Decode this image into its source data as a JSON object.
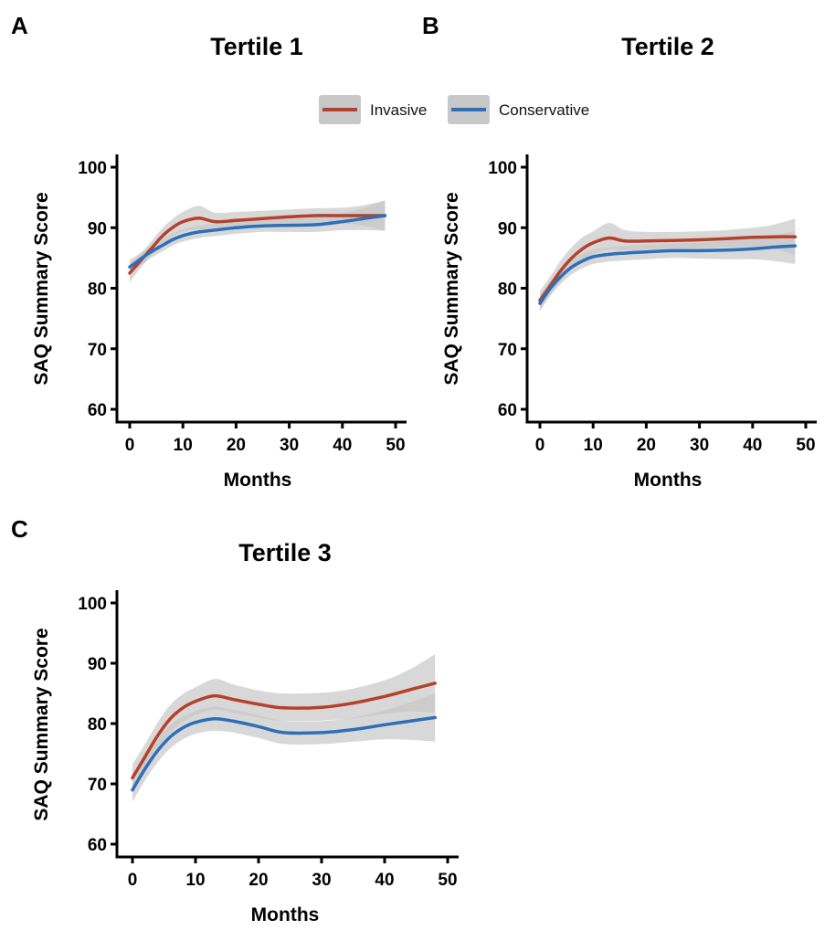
{
  "legend": {
    "items": [
      {
        "label": "Invasive",
        "color": "#b5412d"
      },
      {
        "label": "Conservative",
        "color": "#2f6fb7"
      }
    ],
    "band_color": "#c8c8c8"
  },
  "chart_data": [
    {
      "panel": "A",
      "type": "line",
      "title": "Tertile 1",
      "xlabel": "Months",
      "ylabel": "SAQ Summary Score",
      "xlim": [
        0,
        50
      ],
      "ylim": [
        60,
        100
      ],
      "xticks": [
        "0",
        "10",
        "20",
        "30",
        "40",
        "50"
      ],
      "yticks": [
        "60",
        "70",
        "80",
        "90",
        "100"
      ],
      "x": [
        0,
        2,
        4,
        6,
        8,
        10,
        13,
        16,
        20,
        25,
        30,
        35,
        40,
        44,
        48
      ],
      "series": [
        {
          "name": "Invasive",
          "color": "#b5412d",
          "values": [
            82.5,
            84.5,
            86.5,
            88.5,
            90.0,
            91.0,
            91.6,
            91.0,
            91.2,
            91.5,
            91.8,
            92.0,
            92.0,
            92.0,
            92.0
          ],
          "lower": [
            81.0,
            83.3,
            85.3,
            87.2,
            88.6,
            89.4,
            89.8,
            89.5,
            89.8,
            90.2,
            90.6,
            90.8,
            90.7,
            90.3,
            89.5
          ],
          "upper": [
            84.0,
            85.7,
            87.7,
            89.8,
            91.4,
            92.6,
            93.6,
            92.5,
            92.6,
            92.8,
            93.0,
            93.2,
            93.3,
            93.7,
            94.5
          ]
        },
        {
          "name": "Conservative",
          "color": "#2f6fb7",
          "values": [
            83.5,
            84.8,
            86.0,
            87.0,
            88.0,
            88.7,
            89.3,
            89.6,
            90.0,
            90.3,
            90.4,
            90.5,
            91.0,
            91.5,
            92.0
          ],
          "lower": [
            82.3,
            83.8,
            85.0,
            86.0,
            87.0,
            87.7,
            88.3,
            88.6,
            89.0,
            89.3,
            89.3,
            89.3,
            89.6,
            89.6,
            89.5
          ],
          "upper": [
            84.7,
            85.8,
            87.0,
            88.0,
            89.0,
            89.7,
            90.3,
            90.6,
            91.0,
            91.3,
            91.5,
            91.7,
            92.4,
            93.2,
            94.5
          ]
        }
      ]
    },
    {
      "panel": "B",
      "type": "line",
      "title": "Tertile 2",
      "xlabel": "Months",
      "ylabel": "SAQ Summary Score",
      "xlim": [
        0,
        50
      ],
      "ylim": [
        60,
        100
      ],
      "xticks": [
        "0",
        "10",
        "20",
        "30",
        "40",
        "50"
      ],
      "yticks": [
        "60",
        "70",
        "80",
        "90",
        "100"
      ],
      "x": [
        0,
        2,
        4,
        6,
        8,
        10,
        13,
        16,
        20,
        25,
        30,
        35,
        40,
        44,
        48
      ],
      "series": [
        {
          "name": "Invasive",
          "color": "#b5412d",
          "values": [
            78.0,
            80.5,
            83.0,
            85.0,
            86.5,
            87.5,
            88.3,
            87.8,
            87.8,
            87.9,
            88.0,
            88.2,
            88.4,
            88.5,
            88.5
          ],
          "lower": [
            76.5,
            79.0,
            81.3,
            83.2,
            84.6,
            85.6,
            86.4,
            86.3,
            86.4,
            86.5,
            86.6,
            86.8,
            86.8,
            86.5,
            85.5
          ],
          "upper": [
            79.5,
            82.0,
            84.7,
            86.8,
            88.4,
            89.4,
            90.8,
            89.6,
            89.3,
            89.3,
            89.4,
            89.6,
            90.0,
            90.5,
            91.5
          ]
        },
        {
          "name": "Conservative",
          "color": "#2f6fb7",
          "values": [
            77.5,
            80.0,
            82.0,
            83.5,
            84.5,
            85.2,
            85.6,
            85.8,
            86.0,
            86.2,
            86.2,
            86.3,
            86.5,
            86.8,
            87.0
          ],
          "lower": [
            76.2,
            78.8,
            80.8,
            82.3,
            83.3,
            84.0,
            84.4,
            84.6,
            84.8,
            85.0,
            84.9,
            84.8,
            84.8,
            84.5,
            84.0
          ],
          "upper": [
            78.8,
            81.2,
            83.2,
            84.7,
            85.7,
            86.4,
            86.8,
            87.0,
            87.2,
            87.4,
            87.5,
            87.8,
            88.2,
            88.7,
            89.5
          ]
        }
      ]
    },
    {
      "panel": "C",
      "type": "line",
      "title": "Tertile 3",
      "xlabel": "Months",
      "ylabel": "SAQ Summary Score",
      "xlim": [
        0,
        50
      ],
      "ylim": [
        60,
        100
      ],
      "xticks": [
        "0",
        "10",
        "20",
        "30",
        "40",
        "50"
      ],
      "yticks": [
        "60",
        "70",
        "80",
        "90",
        "100"
      ],
      "x": [
        0,
        2,
        4,
        6,
        8,
        10,
        13,
        16,
        20,
        24,
        30,
        35,
        40,
        44,
        48
      ],
      "series": [
        {
          "name": "Invasive",
          "color": "#b5412d",
          "values": [
            71.0,
            74.5,
            78.0,
            80.8,
            82.6,
            83.7,
            84.6,
            84.0,
            83.2,
            82.6,
            82.7,
            83.4,
            84.5,
            85.6,
            86.7
          ],
          "lower": [
            68.8,
            72.4,
            75.8,
            78.5,
            80.3,
            81.4,
            82.3,
            81.8,
            81.0,
            80.4,
            80.5,
            80.9,
            81.6,
            82.0,
            81.8
          ],
          "upper": [
            73.2,
            76.6,
            80.2,
            83.1,
            84.9,
            86.0,
            87.4,
            86.5,
            85.5,
            85.0,
            85.1,
            85.8,
            87.2,
            89.0,
            91.5
          ]
        },
        {
          "name": "Conservative",
          "color": "#2f6fb7",
          "values": [
            69.0,
            72.5,
            75.5,
            77.8,
            79.3,
            80.2,
            80.8,
            80.4,
            79.5,
            78.5,
            78.5,
            79.0,
            79.8,
            80.4,
            81.0
          ],
          "lower": [
            67.0,
            70.6,
            73.6,
            75.9,
            77.4,
            78.3,
            78.8,
            78.5,
            77.6,
            76.6,
            76.6,
            77.0,
            77.4,
            77.3,
            77.0
          ],
          "upper": [
            71.0,
            74.4,
            77.4,
            79.7,
            81.2,
            82.1,
            82.8,
            82.3,
            81.4,
            80.4,
            80.4,
            81.0,
            82.2,
            83.5,
            85.0
          ]
        }
      ]
    }
  ]
}
